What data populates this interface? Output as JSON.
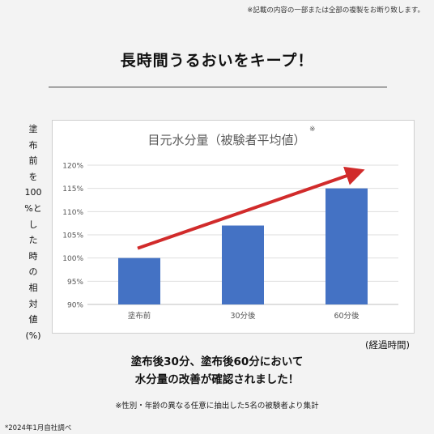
{
  "notice": "※記載の内容の一部または全部の複製をお断り致します。",
  "headline": "長時間うるおいをキープ！",
  "ylabel_chars": [
    "塗",
    "布",
    "前",
    "を",
    "100",
    "%と",
    "し",
    "た",
    "時",
    "の",
    "相",
    "対",
    "値",
    "(%)"
  ],
  "chart_data": {
    "type": "bar",
    "title": "目元水分量（被験者平均値）",
    "title_mark": "※",
    "categories": [
      "塗布前",
      "30分後",
      "60分後"
    ],
    "values": [
      100,
      107,
      115
    ],
    "ylim": [
      90,
      120
    ],
    "yticks": [
      90,
      95,
      100,
      105,
      110,
      115,
      120
    ],
    "ytick_labels": [
      "90%",
      "95%",
      "100%",
      "105%",
      "110%",
      "115%",
      "120%"
    ],
    "grid": true,
    "bar_color": "#4472c4",
    "arrow_color": "#d12b2b"
  },
  "xlabel": "(経過時間)",
  "conclusion_line1": "塗布後30分、塗布後60分において",
  "conclusion_line2": "水分量の改善が確認されました！",
  "footnote": "※性別・年齢の異なる任意に抽出した5名の被験者より集計",
  "date_note": "*2024年1月自社調べ"
}
